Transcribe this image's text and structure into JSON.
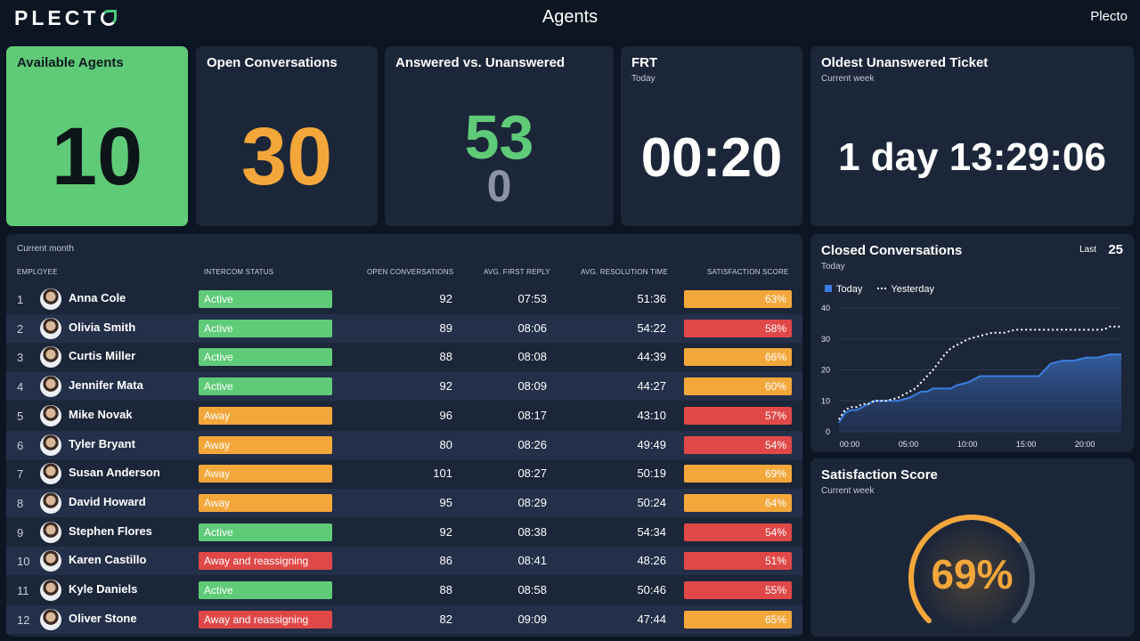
{
  "header": {
    "logo": "PLECT",
    "title": "Agents",
    "brand": "Plecto"
  },
  "available_agents": {
    "title": "Available Agents",
    "value": "10"
  },
  "open_conversations": {
    "title": "Open Conversations",
    "value": "30"
  },
  "answered": {
    "title": "Answered vs. Unanswered",
    "answered": "53",
    "unanswered": "0"
  },
  "frt": {
    "title": "FRT",
    "subtitle": "Today",
    "value": "00:20"
  },
  "oldest": {
    "title": "Oldest Unanswered Ticket",
    "subtitle": "Current week",
    "value": "1 day 13:29:06"
  },
  "table": {
    "subtitle": "Current month",
    "headers": [
      "EMPLOYEE",
      "INTERCOM STATUS",
      "OPEN CONVERSATIONS",
      "AVG. FIRST REPLY",
      "AVG. RESOLUTION TIME",
      "SATISFACTION SCORE"
    ],
    "rows": [
      {
        "rank": "1",
        "name": "Anna Cole",
        "status": "Active",
        "open": "92",
        "first": "07:53",
        "res": "51:36",
        "sat": "63%"
      },
      {
        "rank": "2",
        "name": "Olivia Smith",
        "status": "Active",
        "open": "89",
        "first": "08:06",
        "res": "54:22",
        "sat": "58%"
      },
      {
        "rank": "3",
        "name": "Curtis Miller",
        "status": "Active",
        "open": "88",
        "first": "08:08",
        "res": "44:39",
        "sat": "66%"
      },
      {
        "rank": "4",
        "name": "Jennifer Mata",
        "status": "Active",
        "open": "92",
        "first": "08:09",
        "res": "44:27",
        "sat": "60%"
      },
      {
        "rank": "5",
        "name": "Mike Novak",
        "status": "Away",
        "open": "96",
        "first": "08:17",
        "res": "43:10",
        "sat": "57%"
      },
      {
        "rank": "6",
        "name": "Tyler Bryant",
        "status": "Away",
        "open": "80",
        "first": "08:26",
        "res": "49:49",
        "sat": "54%"
      },
      {
        "rank": "7",
        "name": "Susan Anderson",
        "status": "Away",
        "open": "101",
        "first": "08:27",
        "res": "50:19",
        "sat": "69%"
      },
      {
        "rank": "8",
        "name": "David Howard",
        "status": "Away",
        "open": "95",
        "first": "08:29",
        "res": "50:24",
        "sat": "64%"
      },
      {
        "rank": "9",
        "name": "Stephen Flores",
        "status": "Active",
        "open": "92",
        "first": "08:38",
        "res": "54:34",
        "sat": "54%"
      },
      {
        "rank": "10",
        "name": "Karen Castillo",
        "status": "Away and reassigning",
        "open": "86",
        "first": "08:41",
        "res": "48:26",
        "sat": "51%"
      },
      {
        "rank": "11",
        "name": "Kyle Daniels",
        "status": "Active",
        "open": "88",
        "first": "08:58",
        "res": "50:46",
        "sat": "55%"
      },
      {
        "rank": "12",
        "name": "Oliver Stone",
        "status": "Away and reassigning",
        "open": "82",
        "first": "09:09",
        "res": "47:44",
        "sat": "65%"
      }
    ]
  },
  "closed": {
    "title": "Closed Conversations",
    "subtitle": "Today",
    "last_label": "Last",
    "last_value": "25",
    "legend_today": "Today",
    "legend_yesterday": "Yesterday"
  },
  "satisfaction": {
    "title": "Satisfaction Score",
    "subtitle": "Current week",
    "value": "69%",
    "fraction": 0.69
  },
  "colors": {
    "active": "#5fcb78",
    "away": "#f3a73b",
    "reassign": "#e04848",
    "sat_good": "#f3a73b",
    "sat_bad": "#e04848",
    "orange": "#f3a73b",
    "green": "#5fcb78",
    "today_line": "#3c7ee0"
  },
  "chart_data": {
    "type": "area",
    "title": "Closed Conversations",
    "xlabel": "",
    "ylabel": "",
    "x_ticks": [
      "00:00",
      "05:00",
      "10:00",
      "15:00",
      "20:00"
    ],
    "y_ticks": [
      0,
      10,
      20,
      30,
      40
    ],
    "xlim": [
      0,
      24
    ],
    "ylim": [
      0,
      40
    ],
    "series": [
      {
        "name": "Today",
        "x": [
          0,
          0.5,
          1,
          1.5,
          2,
          2.5,
          3,
          4,
          5,
          6,
          6.5,
          7,
          7.5,
          8,
          9,
          9.5,
          10,
          11,
          12,
          13,
          14,
          15,
          16,
          17,
          17.5,
          18,
          19,
          20,
          21,
          22,
          23,
          24
        ],
        "values": [
          3,
          6,
          7,
          7,
          8,
          9,
          10,
          10,
          10,
          11,
          12,
          13,
          13,
          14,
          14,
          14,
          15,
          16,
          18,
          18,
          18,
          18,
          18,
          18,
          20,
          22,
          23,
          23,
          24,
          24,
          25,
          25
        ]
      },
      {
        "name": "Yesterday",
        "x": [
          0,
          0.5,
          1,
          1.5,
          2,
          2.5,
          3,
          4,
          5,
          6,
          6.5,
          7,
          7.5,
          8,
          9,
          9.5,
          10,
          11,
          12,
          13,
          14,
          15,
          16,
          17,
          18,
          19,
          20,
          21,
          22,
          22.5,
          23,
          24
        ],
        "values": [
          4,
          7,
          8,
          8,
          9,
          9,
          10,
          10,
          11,
          13,
          14,
          16,
          18,
          20,
          25,
          27,
          28,
          30,
          31,
          32,
          32,
          33,
          33,
          33,
          33,
          33,
          33,
          33,
          33,
          33,
          34,
          34
        ]
      }
    ]
  }
}
